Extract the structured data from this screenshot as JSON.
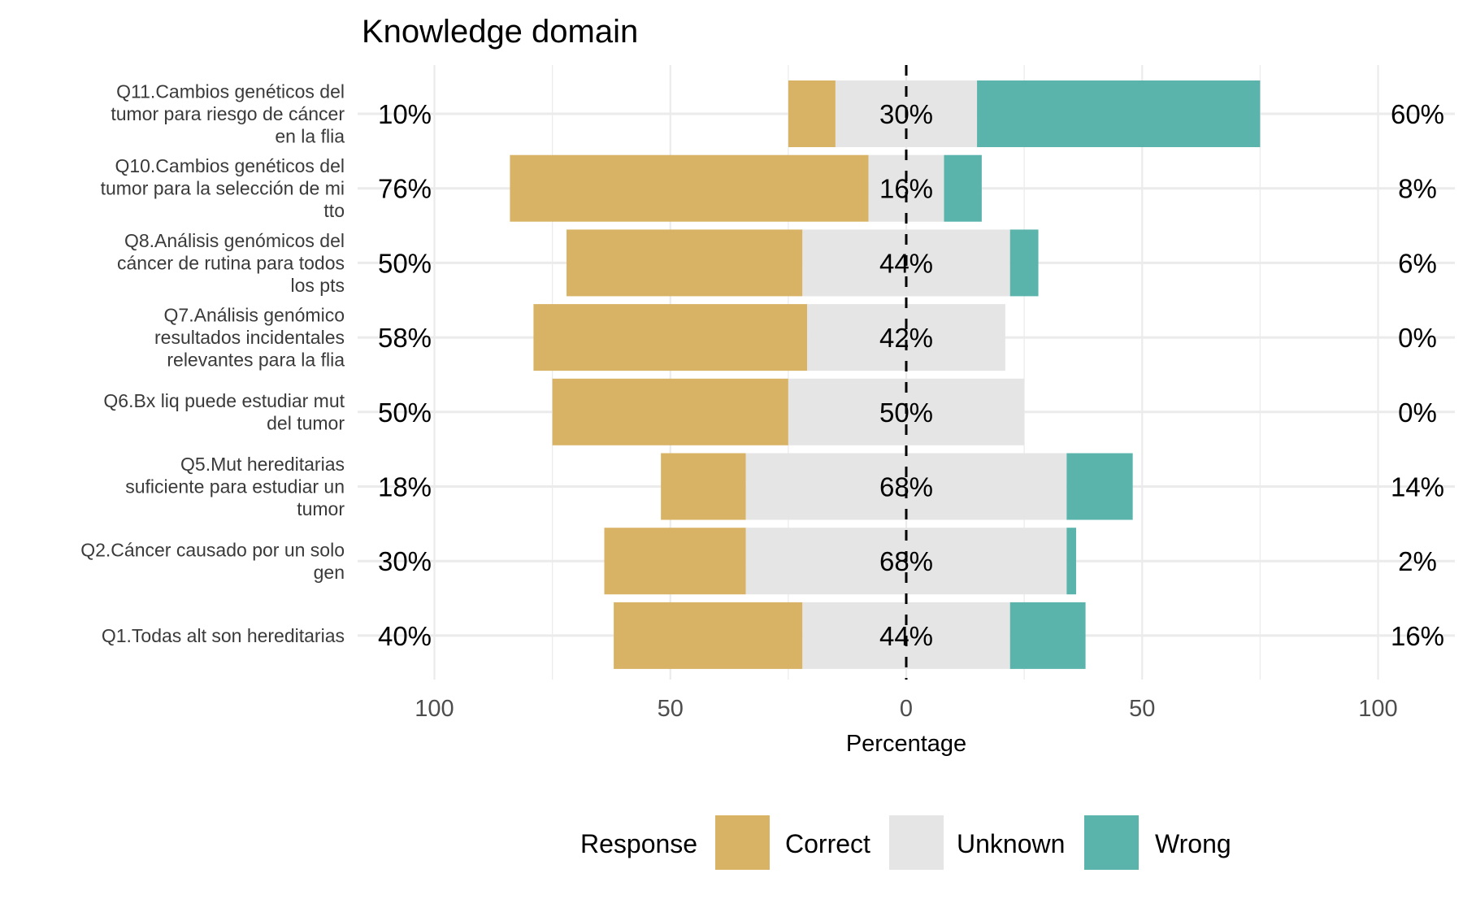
{
  "chart_data": {
    "type": "bar",
    "orientation": "horizontal",
    "stacking": "diverging",
    "title": "Knowledge domain",
    "xlabel": "Percentage",
    "ylabel": "",
    "xlim": [
      -100,
      100
    ],
    "xticks": [
      -100,
      -50,
      0,
      50,
      100
    ],
    "xtick_labels": [
      "100",
      "50",
      "0",
      "50",
      "100"
    ],
    "grid": true,
    "legend_position": "bottom",
    "legend": {
      "title": "Response",
      "entries": [
        {
          "name": "Correct",
          "color": "#D8B365"
        },
        {
          "name": "Unknown",
          "color": "#E5E5E5"
        },
        {
          "name": "Wrong",
          "color": "#5AB4AC"
        }
      ]
    },
    "categories": [
      {
        "lines": [
          "Q11.Cambios genéticos del",
          "tumor para riesgo de cáncer",
          "en la flia"
        ]
      },
      {
        "lines": [
          "Q10.Cambios genéticos del",
          "tumor para la selección de mi",
          "tto"
        ]
      },
      {
        "lines": [
          "Q8.Análisis genómicos del",
          "cáncer de rutina para todos",
          "los pts"
        ]
      },
      {
        "lines": [
          "Q7.Análisis genómico",
          "resultados incidentales",
          "relevantes para la flia"
        ]
      },
      {
        "lines": [
          "Q6.Bx liq puede estudiar mut",
          "del tumor"
        ]
      },
      {
        "lines": [
          "Q5.Mut hereditarias",
          "suficiente para estudiar un",
          "tumor"
        ]
      },
      {
        "lines": [
          "Q2.Cáncer causado por un solo",
          "gen"
        ]
      },
      {
        "lines": [
          "Q1.Todas alt son hereditarias"
        ]
      }
    ],
    "series": [
      {
        "name": "Correct",
        "values": [
          10,
          76,
          50,
          58,
          50,
          18,
          30,
          40
        ],
        "labels": [
          "10%",
          "76%",
          "50%",
          "58%",
          "50%",
          "18%",
          "30%",
          "40%"
        ]
      },
      {
        "name": "Unknown",
        "values": [
          30,
          16,
          44,
          42,
          50,
          68,
          68,
          44
        ],
        "labels": [
          "30%",
          "16%",
          "44%",
          "42%",
          "50%",
          "68%",
          "68%",
          "44%"
        ]
      },
      {
        "name": "Wrong",
        "values": [
          60,
          8,
          6,
          0,
          0,
          14,
          2,
          16
        ],
        "labels": [
          "60%",
          "8%",
          "6%",
          "0%",
          "0%",
          "14%",
          "2%",
          "16%"
        ]
      }
    ]
  }
}
